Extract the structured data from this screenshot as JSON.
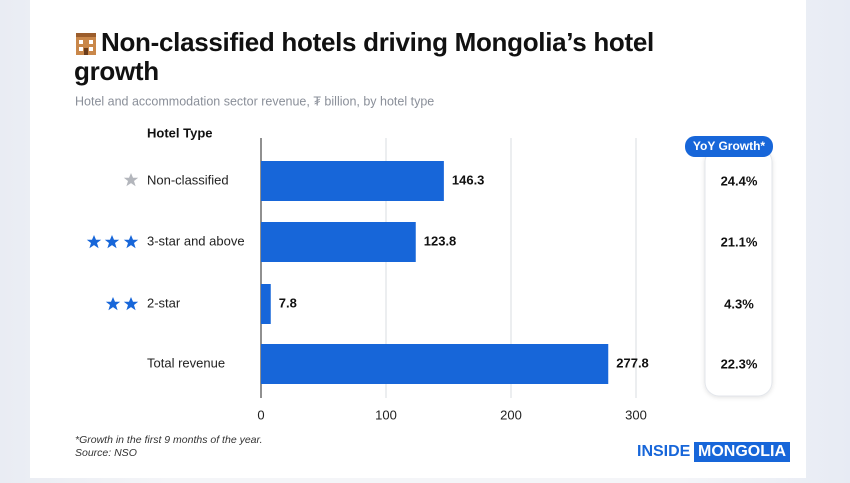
{
  "chart_data": {
    "type": "bar",
    "orientation": "horizontal",
    "title": "Non-classified hotels driving Mongolia’s hotel growth",
    "subtitle": "Hotel and accommodation sector revenue, ₮ billion, by hotel type",
    "category_header": "Hotel Type",
    "categories": [
      "Non-classified",
      "3-star and above",
      "2-star",
      "Total revenue"
    ],
    "values": [
      146.3,
      123.8,
      7.8,
      277.8
    ],
    "color": "#1766d9",
    "xlim": [
      0,
      300
    ],
    "xticks": [
      0,
      100,
      200,
      300
    ],
    "grid": true,
    "yoy_growth": {
      "title": "YoY Growth*",
      "values": [
        24.4,
        21.1,
        4.3,
        22.3
      ],
      "value_labels": [
        "24.4%",
        "21.1%",
        "4.3%",
        "22.3%"
      ]
    },
    "footnote": "*Growth in the first 9 months of the year.",
    "source": "Source: NSO",
    "brand": [
      "INSIDE",
      "MONGOLIA"
    ]
  }
}
